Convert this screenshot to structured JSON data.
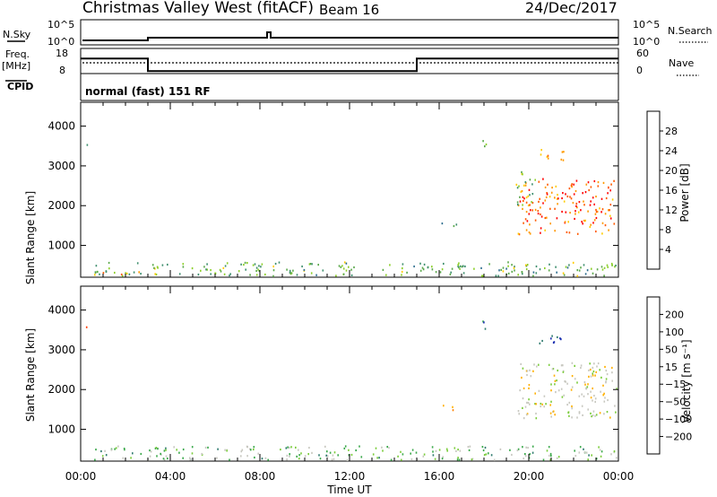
{
  "header": {
    "station": "Christmas Valley West (fitACF)",
    "beam": "Beam 16",
    "date": "24/Dec/2017"
  },
  "summary": {
    "nsky_label": "N.Sky",
    "nsky_ticks": [
      "10^5",
      "10^0"
    ],
    "nsearch_label": "N.Search",
    "freq_label_line1": "Freq.",
    "freq_label_line2": "[MHz]",
    "freq_ticks": [
      "18",
      "8"
    ],
    "nave_label": "Nave",
    "nave_ticks": [
      "60",
      "0"
    ],
    "right_ticks_top": [
      "10^5",
      "10^0"
    ],
    "cpid_label": "CPID",
    "cpid_text": "normal (fast) 151 RF"
  },
  "colors": {
    "power_scale": [
      "#1a1aff",
      "#1c3fb0",
      "#2e6e8e",
      "#3f8f6e",
      "#5aa84a",
      "#8ccf2a",
      "#ffcc00",
      "#ff9900",
      "#ff5a00",
      "#ff0000"
    ],
    "velocity_scale": [
      "#e00000",
      "#ff4000",
      "#ff8000",
      "#ffb000",
      "#c8c8c0",
      "#c8c8c0",
      "#7acc3a",
      "#3aa84a",
      "#2e7a6e",
      "#1a2fb0"
    ]
  },
  "chart_data": [
    {
      "type": "heatmap",
      "name": "power",
      "ylabel": "Slant Range [km]",
      "xlabel": "",
      "x_ticks": [
        "00:00",
        "04:00",
        "08:00",
        "12:00",
        "16:00",
        "20:00",
        "00:00"
      ],
      "y_ticks": [
        1000,
        2000,
        3000,
        4000
      ],
      "ylim": [
        200,
        4600
      ],
      "colorbar_label": "Power [dB]",
      "colorbar_ticks": [
        "4",
        "8",
        "12",
        "16",
        "20",
        "24",
        "28"
      ],
      "colorbar_range": [
        0,
        30
      ],
      "regions": [
        {
          "x0": 0.5,
          "x1": 23.9,
          "y0": 250,
          "y1": 600,
          "level": 0.45
        },
        {
          "x0": 0.7,
          "x1": 2.8,
          "y0": 280,
          "y1": 360,
          "level": 0.7
        },
        {
          "x0": 17.7,
          "x1": 18.1,
          "y0": 3500,
          "y1": 3750,
          "level": 0.5
        },
        {
          "x0": 20.4,
          "x1": 21.6,
          "y0": 3150,
          "y1": 3450,
          "level": 0.7
        },
        {
          "x0": 19.5,
          "x1": 23.9,
          "y0": 1300,
          "y1": 2700,
          "level": 0.85
        },
        {
          "x0": 19.4,
          "x1": 20.3,
          "y0": 2000,
          "y1": 2900,
          "level": 0.5
        },
        {
          "x0": 16.1,
          "x1": 16.9,
          "y0": 1500,
          "y1": 1650,
          "level": 0.3
        },
        {
          "x0": 0.0,
          "x1": 0.3,
          "y0": 3550,
          "y1": 3700,
          "level": 0.3
        }
      ]
    },
    {
      "type": "heatmap",
      "name": "velocity",
      "ylabel": "Slant Range [km]",
      "xlabel": "Time UT",
      "x_ticks": [
        "00:00",
        "04:00",
        "08:00",
        "12:00",
        "16:00",
        "20:00",
        "00:00"
      ],
      "y_ticks": [
        1000,
        2000,
        3000,
        4000
      ],
      "ylim": [
        200,
        4600
      ],
      "colorbar_label": "Velocity [m s⁻¹]",
      "colorbar_ticks": [
        "200",
        "100",
        "50",
        "15",
        "−15",
        "−50",
        "−100",
        "−200"
      ],
      "colorbar_range": [
        -250,
        250
      ],
      "regions": [
        {
          "x0": 0.5,
          "x1": 23.9,
          "y0": 250,
          "y1": 600,
          "level": 0.35
        },
        {
          "x0": 17.7,
          "x1": 18.1,
          "y0": 3500,
          "y1": 3750,
          "level": 0.1
        },
        {
          "x0": 20.4,
          "x1": 21.6,
          "y0": 3150,
          "y1": 3450,
          "level": 0.05
        },
        {
          "x0": 19.5,
          "x1": 23.9,
          "y0": 1300,
          "y1": 2700,
          "level": 0.5
        },
        {
          "x0": 16.1,
          "x1": 16.9,
          "y0": 1500,
          "y1": 1650,
          "level": 0.65
        },
        {
          "x0": 0.0,
          "x1": 0.3,
          "y0": 3550,
          "y1": 3700,
          "level": 0.95
        }
      ]
    }
  ],
  "freq_trace": [
    {
      "x0": 0,
      "x1": 3,
      "v": 14
    },
    {
      "x0": 3,
      "x1": 15,
      "v": 9
    },
    {
      "x0": 15,
      "x1": 24,
      "v": 14
    }
  ],
  "nave_trace_level": 0.55
}
